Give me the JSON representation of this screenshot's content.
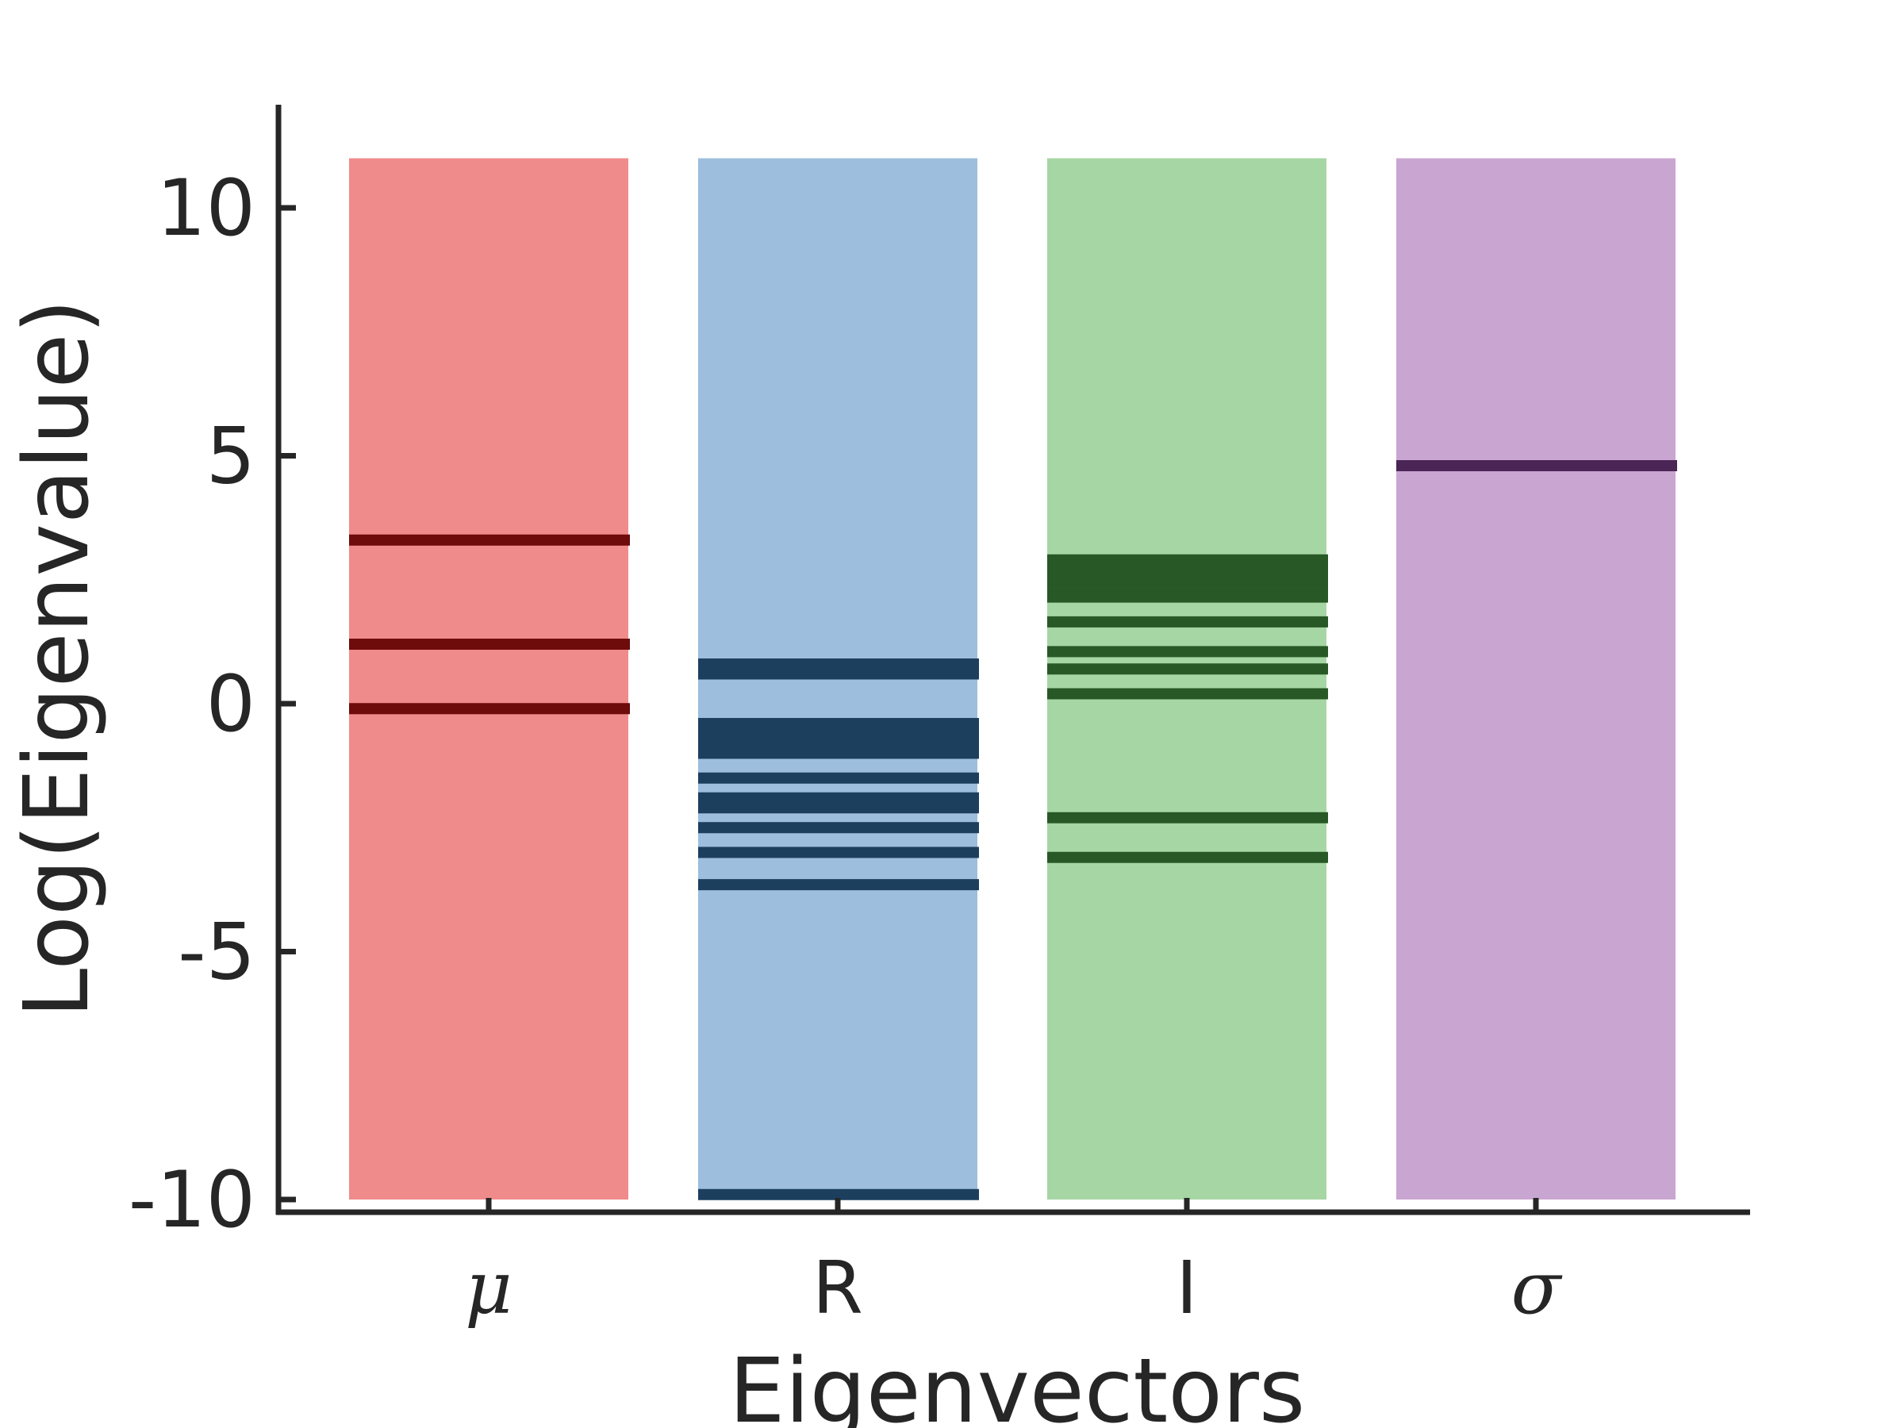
{
  "chart_data": {
    "type": "bar",
    "title": "",
    "xlabel": "Eigenvectors",
    "ylabel": "Log(Eigenvalue)",
    "ylim": [
      -10.3,
      12.1
    ],
    "yticks": [
      10,
      5,
      0,
      -5,
      -10
    ],
    "ytick_labels": [
      "10",
      "5",
      "0",
      "-5",
      "-10"
    ],
    "grid": false,
    "legend": "none",
    "categories": [
      {
        "label": "μ",
        "math": true,
        "bar_range": [
          -10,
          11
        ],
        "fill": "#f08b8b",
        "line_color": "#6e0b0b",
        "eigenvalues": [
          3.3,
          1.2,
          -0.1
        ]
      },
      {
        "label": "R",
        "math": false,
        "bar_range": [
          -10,
          11
        ],
        "fill": "#9dbedc",
        "line_color": "#1d3f5e",
        "eigenvalues": [
          0.6,
          0.8,
          -0.4,
          -0.6,
          -0.8,
          -1.0,
          -1.5,
          -1.9,
          -2.1,
          -2.5,
          -3.0,
          -3.65,
          -9.9
        ]
      },
      {
        "label": "I",
        "math": false,
        "bar_range": [
          -10,
          11
        ],
        "fill": "#a6d6a3",
        "line_color": "#275825",
        "eigenvalues": [
          2.9,
          2.7,
          2.5,
          2.3,
          2.15,
          1.65,
          1.05,
          0.7,
          0.2,
          -2.3,
          -3.1
        ]
      },
      {
        "label": "σ",
        "math": true,
        "bar_range": [
          -10,
          11
        ],
        "fill": "#c9a6d1",
        "line_color": "#4b2556",
        "eigenvalues": [
          4.8
        ]
      }
    ]
  }
}
